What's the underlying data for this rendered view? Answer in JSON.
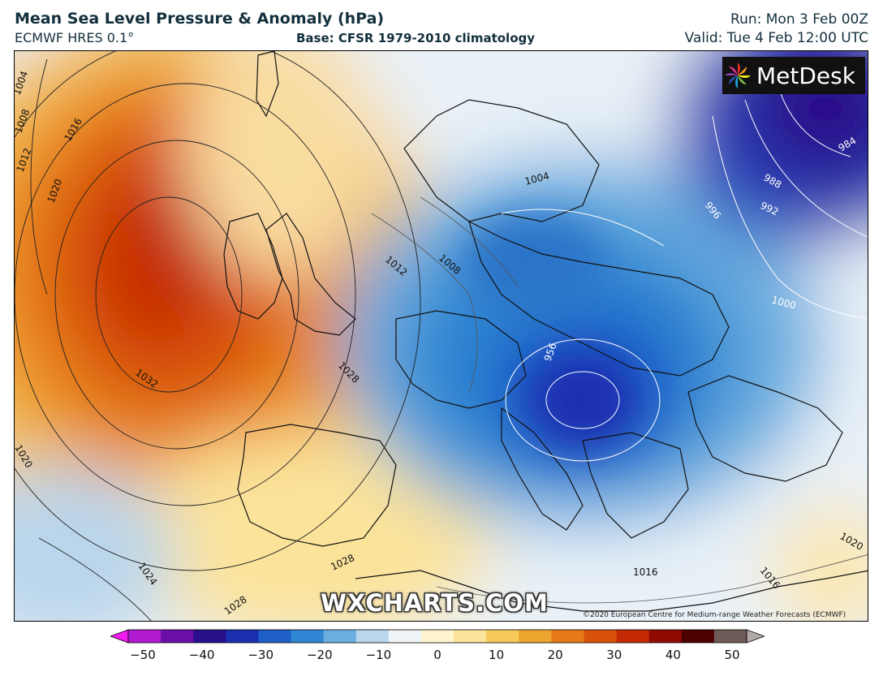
{
  "header": {
    "title": "Mean Sea Level Pressure & Anomaly (hPa)",
    "model": "ECMWF HRES 0.1°",
    "base": "Base: CFSR 1979-2010 climatology",
    "run": "Run: Mon 3 Feb 00Z",
    "valid": "Valid: Tue 4 Feb 12:00 UTC"
  },
  "logo": {
    "text": "MetDesk",
    "icon": "pinwheel-icon"
  },
  "watermark": "WXCHARTS.COM",
  "copyright": "©2020 European Centre for Medium-range Weather Forecasts (ECMWF)",
  "isobar_labels": [
    {
      "text": "1004"
    },
    {
      "text": "1008"
    },
    {
      "text": "1012"
    },
    {
      "text": "1016"
    },
    {
      "text": "1020"
    },
    {
      "text": "1032"
    },
    {
      "text": "1028"
    },
    {
      "text": "1020"
    },
    {
      "text": "1024"
    },
    {
      "text": "1028"
    },
    {
      "text": "1028"
    },
    {
      "text": "1004"
    },
    {
      "text": "1012"
    },
    {
      "text": "1008"
    },
    {
      "text": "956"
    },
    {
      "text": "1000"
    },
    {
      "text": "996"
    },
    {
      "text": "992"
    },
    {
      "text": "988"
    },
    {
      "text": "984"
    },
    {
      "text": "1016"
    },
    {
      "text": "1016"
    },
    {
      "text": "1020"
    }
  ],
  "colorbar": {
    "ticks": [
      "−50",
      "−40",
      "−30",
      "−20",
      "−10",
      "0",
      "10",
      "20",
      "30",
      "40",
      "50"
    ],
    "colors": [
      "#f01cf0",
      "#b01ad0",
      "#6a0fa8",
      "#2a0f8a",
      "#1a2fb0",
      "#1f5fc8",
      "#2f86d2",
      "#6aaee0",
      "#b9d6ec",
      "#eef4f8",
      "#fff4d0",
      "#fbe39a",
      "#f5c95a",
      "#eda530",
      "#e77a17",
      "#d9520c",
      "#c42a05",
      "#8f0b03",
      "#4d0000",
      "#6e5a58",
      "#b3aaa8"
    ]
  }
}
